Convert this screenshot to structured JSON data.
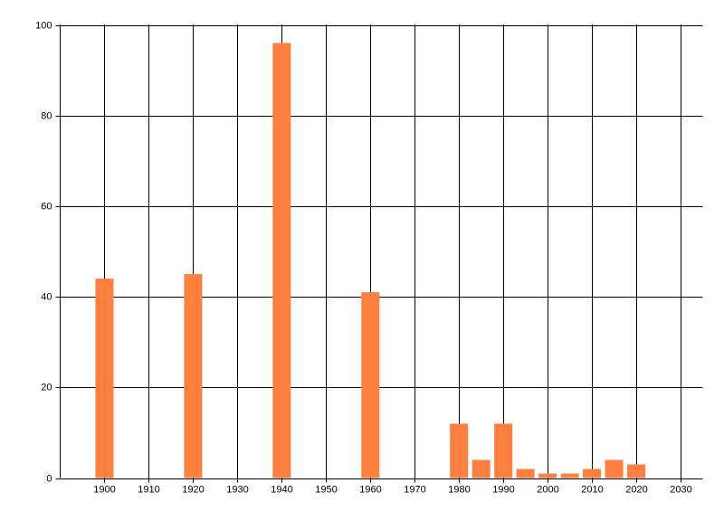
{
  "chart_data": {
    "type": "bar",
    "x": [
      1900,
      1920,
      1940,
      1960,
      1980,
      1985,
      1990,
      1995,
      2000,
      2005,
      2010,
      2015,
      2020
    ],
    "values": [
      44,
      45,
      96,
      41,
      12,
      4,
      12,
      2,
      1,
      1,
      2,
      4,
      3
    ],
    "color": "#ff7f3f",
    "xlim": [
      1890,
      2035
    ],
    "xticks": [
      1900,
      1910,
      1920,
      1930,
      1940,
      1950,
      1960,
      1970,
      1980,
      1990,
      2000,
      2010,
      2020,
      2030
    ],
    "ylim": [
      0,
      100
    ],
    "yticks": [
      0,
      20,
      40,
      60,
      80,
      100
    ],
    "grid": true
  }
}
